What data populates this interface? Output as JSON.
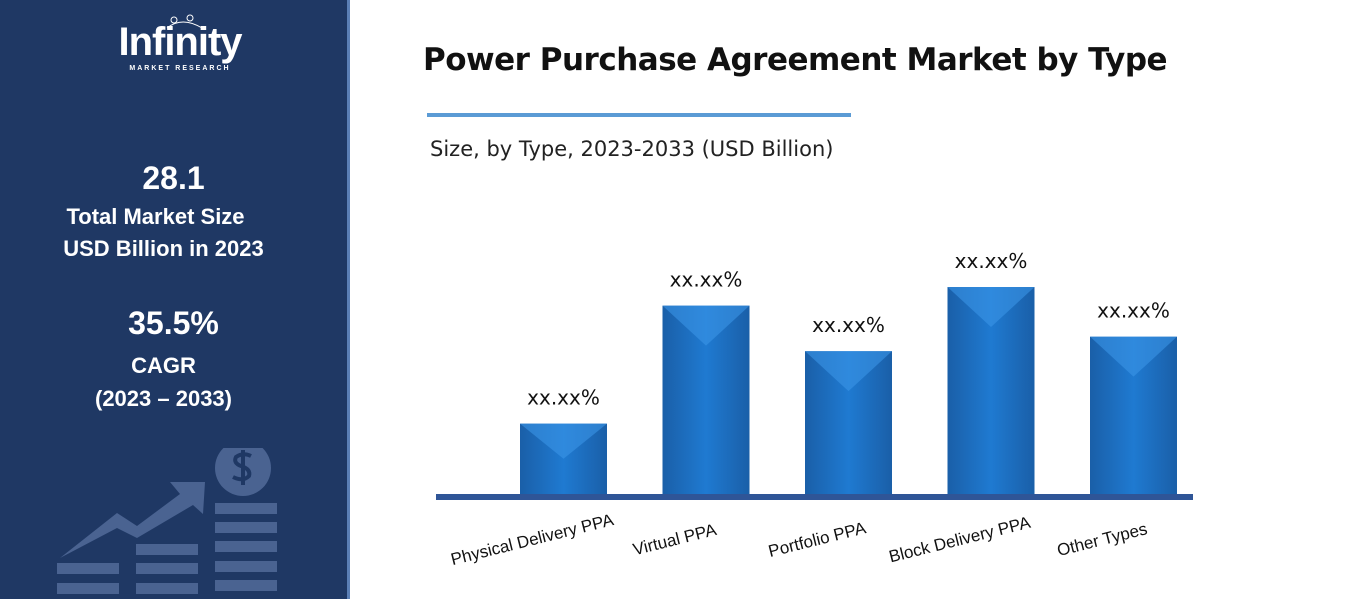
{
  "sidebar": {
    "logo_text": "Infinity",
    "logo_subtext": "MARKET RESEARCH",
    "market_size_value": "28.1",
    "market_size_label_1": "Total Market Size",
    "market_size_label_2": "USD Billion in 2023",
    "cagr_value": "35.5%",
    "cagr_label": "CAGR",
    "cagr_period": "(2023 – 2033)",
    "illustration_icon": "growth-chart-dollar-icon"
  },
  "chart_data": {
    "type": "bar",
    "title": "Power Purchase Agreement Market by Type",
    "subtitle": "Size, by Type, 2023-2033 (USD Billion)",
    "xlabel": "",
    "ylabel": "",
    "categories": [
      "Physical Delivery PPA",
      "Virtual PPA",
      "Portfolio PPA",
      "Block Delivery PPA",
      "Other Types"
    ],
    "values": [
      0.34,
      0.91,
      0.69,
      1.0,
      0.76
    ],
    "value_note": "relative heights; no axis shown",
    "data_labels": [
      "xx.xx%",
      "xx.xx%",
      "xx.xx%",
      "xx.xx%",
      "xx.xx%"
    ],
    "ylim": [
      0,
      1
    ],
    "grid": false,
    "colors": {
      "bar": "#1f77c9",
      "axis": "#2f5597"
    }
  }
}
